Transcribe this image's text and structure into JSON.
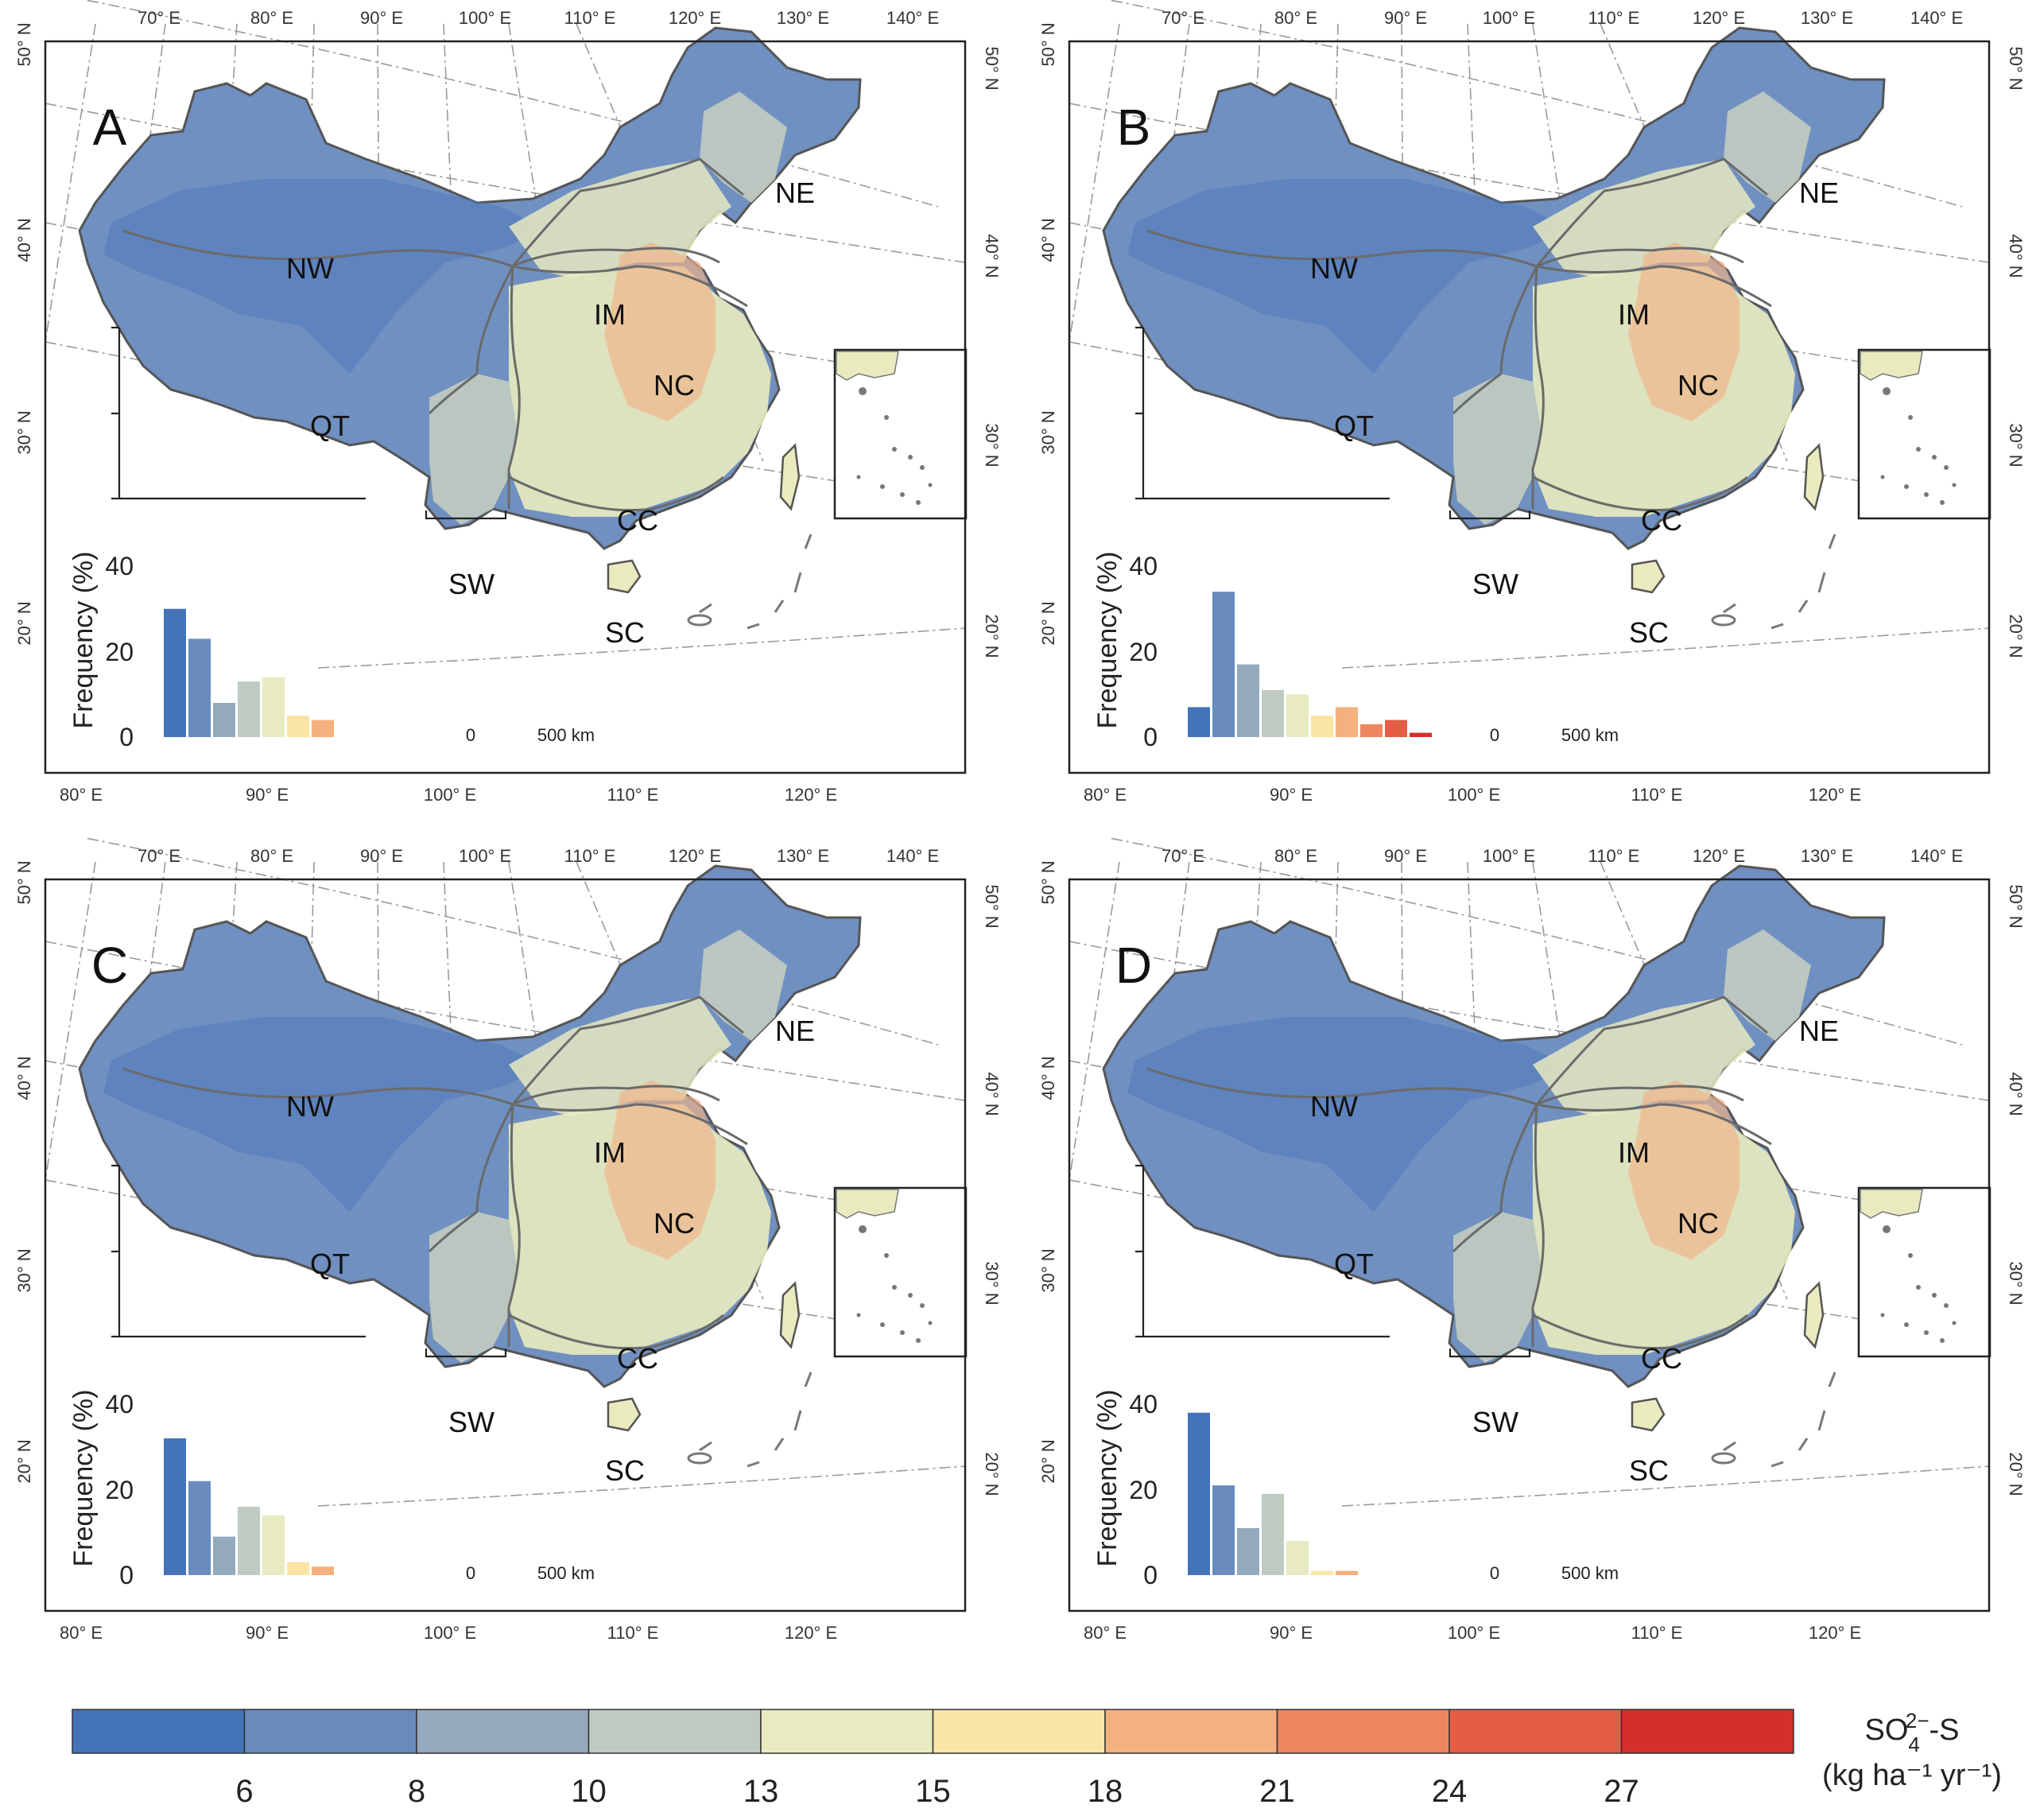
{
  "figure": {
    "top_lon_labels": [
      "70° E",
      "80° E",
      "90° E",
      "100° E",
      "110° E",
      "120° E",
      "130° E",
      "140° E"
    ],
    "bottom_lon_labels": [
      "80° E",
      "90° E",
      "100° E",
      "110° E",
      "120° E"
    ],
    "left_lat_labels": [
      "50° N",
      "40° N",
      "30° N",
      "20° N"
    ],
    "right_lat_labels": [
      "50° N",
      "40° N",
      "30° N",
      "20° N"
    ],
    "region_labels": [
      "NW",
      "NE",
      "IM",
      "QT",
      "NC",
      "CC",
      "SW",
      "SC"
    ],
    "hist_ylabel": "Frequency (%)",
    "hist_yticks": [
      "40",
      "20",
      "0"
    ],
    "scalebar": {
      "zero": "0",
      "label": "500 km"
    }
  },
  "panels": [
    {
      "label": "A",
      "histogram": [
        30,
        23,
        8,
        13,
        14,
        5,
        4,
        0,
        0,
        0
      ]
    },
    {
      "label": "B",
      "histogram": [
        7,
        34,
        17,
        11,
        10,
        5,
        7,
        3,
        4,
        1
      ]
    },
    {
      "label": "C",
      "histogram": [
        32,
        22,
        9,
        16,
        14,
        3,
        2,
        0,
        0,
        0
      ]
    },
    {
      "label": "D",
      "histogram": [
        38,
        21,
        11,
        19,
        8,
        1,
        1,
        0,
        0,
        0
      ]
    }
  ],
  "colorbar": {
    "tick_labels": [
      "6",
      "8",
      "10",
      "13",
      "15",
      "18",
      "21",
      "24",
      "27"
    ],
    "colors": [
      "#4473b8",
      "#6a8bbd",
      "#93a9bc",
      "#bfcbc0",
      "#e8ebc0",
      "#fbe5a5",
      "#f5b07f",
      "#ee8660",
      "#e45e46",
      "#d42f2b"
    ],
    "title_main": "SO",
    "title_sub": "4",
    "title_sup": "2−",
    "title_tail": "-S",
    "units": "(kg ha⁻¹ yr⁻¹)"
  }
}
